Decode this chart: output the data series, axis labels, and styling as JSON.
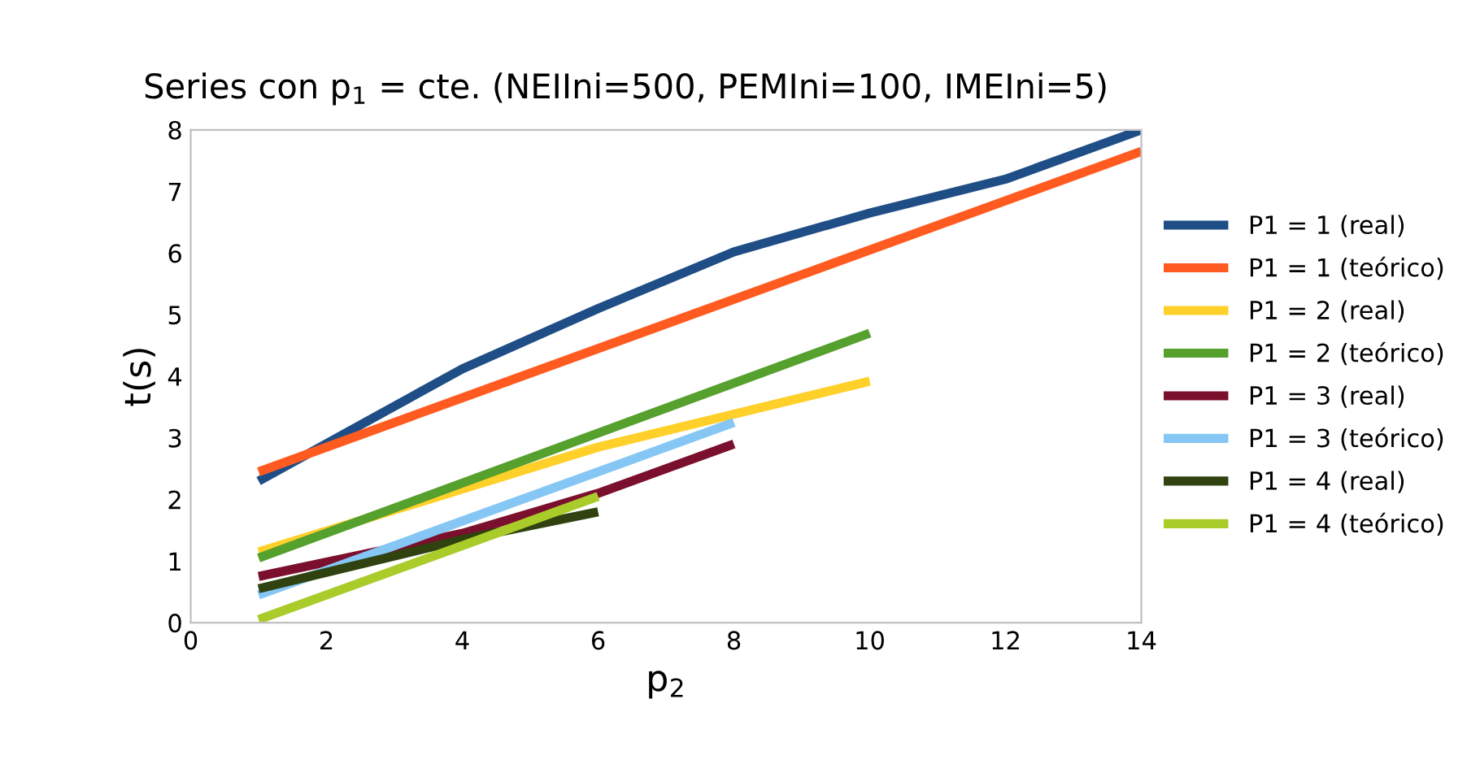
{
  "chart_data": {
    "type": "line",
    "title": "Series con p$_{1}$ = cte. (NEIIni=500, PEMIni=100, IMEIni=5)",
    "xlabel": "p$_{2}$",
    "ylabel": "t(s)",
    "xlim": [
      0,
      14
    ],
    "xticks": [
      0,
      2,
      4,
      6,
      8,
      10,
      12,
      14
    ],
    "ylim": [
      0,
      8
    ],
    "yticks": [
      0,
      1,
      2,
      3,
      4,
      5,
      6,
      7,
      8
    ],
    "grid": false,
    "legend": "right",
    "marker": "none",
    "line_style": "solid",
    "series": [
      {
        "name": "P1 = 1 (real)",
        "color": "#1f4e86",
        "x": [
          1,
          4,
          6,
          8,
          10,
          12,
          14
        ],
        "values": [
          2.3,
          4.12,
          5.1,
          6.02,
          6.65,
          7.2,
          8.0
        ]
      },
      {
        "name": "P1 = 1 (teórico)",
        "color": "#ff5a1f",
        "x": [
          1,
          14
        ],
        "values": [
          2.45,
          7.65
        ]
      },
      {
        "name": "P1 = 2 (real)",
        "color": "#ffd02a",
        "x": [
          1,
          6,
          10
        ],
        "values": [
          1.15,
          2.85,
          3.92
        ]
      },
      {
        "name": "P1 = 2 (teórico)",
        "color": "#56a02e",
        "x": [
          1,
          10
        ],
        "values": [
          1.05,
          4.7
        ]
      },
      {
        "name": "P1 = 3 (real)",
        "color": "#7b0f2e",
        "x": [
          1,
          4,
          6,
          7,
          8
        ],
        "values": [
          0.75,
          1.45,
          2.1,
          2.5,
          2.9
        ]
      },
      {
        "name": "P1 = 3 (teórico)",
        "color": "#85c6f5",
        "x": [
          1,
          8
        ],
        "values": [
          0.45,
          3.25
        ]
      },
      {
        "name": "P1 = 4 (real)",
        "color": "#2f4210",
        "x": [
          1,
          4,
          6
        ],
        "values": [
          0.55,
          1.35,
          1.8
        ]
      },
      {
        "name": "P1 = 4 (teórico)",
        "color": "#aacc2a",
        "x": [
          1,
          6
        ],
        "values": [
          0.05,
          2.05
        ]
      }
    ]
  }
}
